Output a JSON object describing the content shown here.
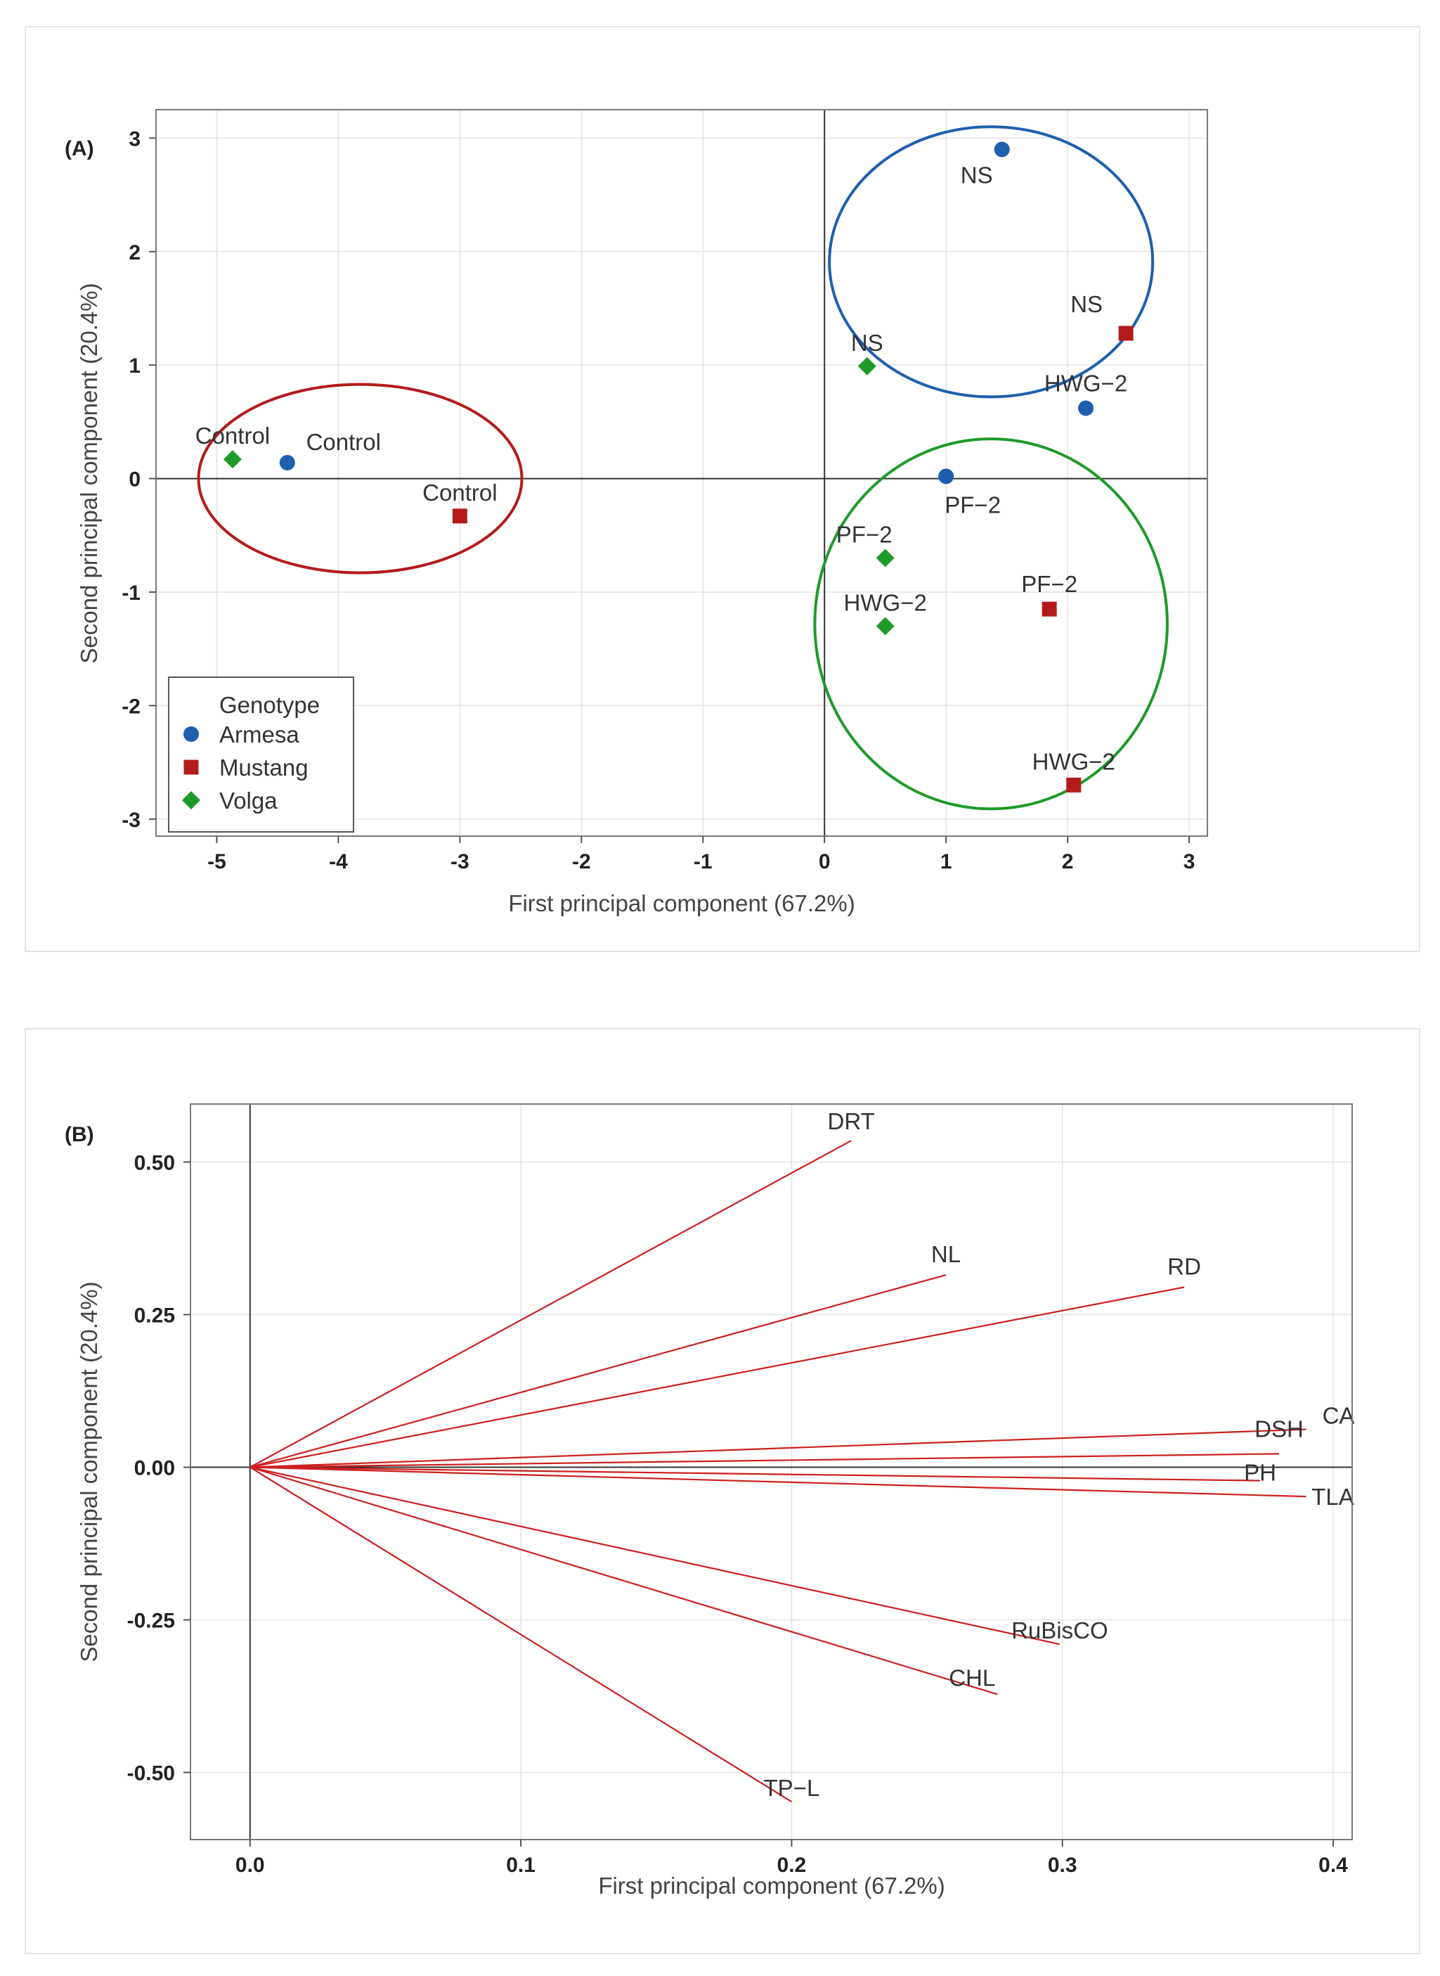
{
  "panels": {
    "a": {
      "tag": "(A)"
    },
    "b": {
      "tag": "(B)"
    }
  },
  "chart_data": [
    {
      "type": "scatter",
      "xlabel": "First principal component (67.2%)",
      "ylabel": "Second principal component (20.4%)",
      "xlim": [
        -5.5,
        3.15
      ],
      "ylim": [
        -3.15,
        3.25
      ],
      "xticks": [
        -5,
        -4,
        -3,
        -2,
        -1,
        0,
        1,
        2,
        3
      ],
      "yticks": [
        -3,
        -2,
        -1,
        0,
        1,
        2,
        3
      ],
      "grid": true,
      "legend": {
        "title": "Genotype",
        "position": "bottom-left"
      },
      "series": [
        {
          "name": "Armesa",
          "color": "#1f5fae",
          "marker": "circle",
          "points": [
            {
              "x": -4.42,
              "y": 0.14,
              "label": "Control"
            },
            {
              "x": 1.46,
              "y": 2.9,
              "label": "NS"
            },
            {
              "x": 2.15,
              "y": 0.62,
              "label": "HWG−2"
            },
            {
              "x": 1.0,
              "y": 0.02,
              "label": "PF−2"
            }
          ]
        },
        {
          "name": "Mustang",
          "color": "#b31b1b",
          "marker": "square",
          "points": [
            {
              "x": -3.0,
              "y": -0.33,
              "label": "Control"
            },
            {
              "x": 2.48,
              "y": 1.28,
              "label": "NS"
            },
            {
              "x": 1.85,
              "y": -1.15,
              "label": "PF−2"
            },
            {
              "x": 2.05,
              "y": -2.7,
              "label": "HWG−2"
            }
          ]
        },
        {
          "name": "Volga",
          "color": "#1e9a2a",
          "marker": "diamond",
          "points": [
            {
              "x": -4.87,
              "y": 0.17,
              "label": "Control"
            },
            {
              "x": 0.35,
              "y": 0.99,
              "label": "NS"
            },
            {
              "x": 0.5,
              "y": -0.7,
              "label": "PF−2"
            },
            {
              "x": 0.5,
              "y": -1.3,
              "label": "HWG−2"
            }
          ]
        }
      ],
      "ellipses": [
        {
          "color": "#b31b1b",
          "cx": -3.82,
          "cy": 0.0,
          "rx": 1.33,
          "ry": 0.83
        },
        {
          "color": "#1f5fae",
          "cx": 1.37,
          "cy": 1.91,
          "rx": 1.33,
          "ry": 1.19
        },
        {
          "color": "#1e9a2a",
          "cx": 1.37,
          "cy": -1.28,
          "rx": 1.45,
          "ry": 1.63
        }
      ]
    },
    {
      "type": "biplot-loadings",
      "xlabel": "First principal component (67.2%)",
      "ylabel": "Second principal component (20.4%)",
      "xlim": [
        -0.022,
        0.407
      ],
      "ylim": [
        -0.61,
        0.595
      ],
      "xticks": [
        0.0,
        0.1,
        0.2,
        0.3,
        0.4
      ],
      "xtick_labels": [
        "0.0",
        "0.1",
        "0.2",
        "0.3",
        "0.4"
      ],
      "yticks": [
        -0.5,
        -0.25,
        0.0,
        0.25,
        0.5
      ],
      "ytick_labels": [
        "-0.50",
        "-0.25",
        "0.00",
        "0.25",
        "0.50"
      ],
      "grid": true,
      "arrow_color": "#cc1f1f",
      "vectors": [
        {
          "name": "DRT",
          "x": 0.222,
          "y": 0.535
        },
        {
          "name": "NL",
          "x": 0.257,
          "y": 0.315
        },
        {
          "name": "RD",
          "x": 0.345,
          "y": 0.295
        },
        {
          "name": "CA",
          "x": 0.39,
          "y": 0.062
        },
        {
          "name": "DSH",
          "x": 0.38,
          "y": 0.022
        },
        {
          "name": "PH",
          "x": 0.373,
          "y": -0.022
        },
        {
          "name": "TLA",
          "x": 0.39,
          "y": -0.048
        },
        {
          "name": "RuBisCO",
          "x": 0.299,
          "y": -0.29
        },
        {
          "name": "CHL",
          "x": 0.276,
          "y": -0.372
        },
        {
          "name": "TP−L",
          "x": 0.2,
          "y": -0.548
        }
      ]
    }
  ]
}
